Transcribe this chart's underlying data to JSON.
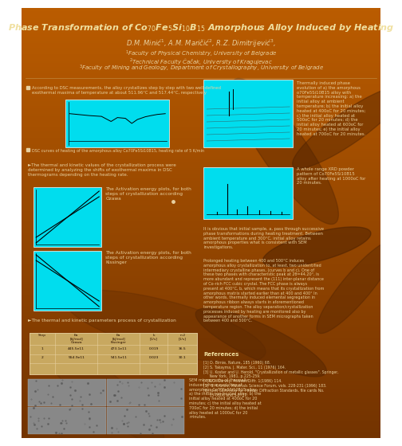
{
  "title": "Phase Transformation of Co$_{70}$Fe$_5$Si$_{10}$B$_{15}$ Amorphous Alloy Induced by Heating",
  "authors": "D.M. Minić$^1$, A.M. Maričić$^2$, R.Z. Dimitrijević$^3$,",
  "affil1": "$^1$Faculty of Physical Chemistry, University of Belgrade",
  "affil2": "$^2$Technical Faculty Čačak, University of Kragujevac",
  "affil3": "$^3$Faculty of Mining and Geology, Department of Crystallography, University of Belgrade",
  "bullet1_text": "According to DSC measurements, the alloy crystallizes step by step with two well-defined\nexothermal maxima of temperature at about 511.96°C and 517.44°C, respectively",
  "bullet2_text": "DSC curves of heating of the amorphous alloy Co70Fe5Si10B15, heating rate of 5 K/min",
  "kinetic_text": "►The thermal and kinetic values of the crystallization process were\ndetermined by analyzing the shifts of exothermal maxima in DSC\nthermograms depending on the heating rate.",
  "ozawa_text": "The Activation energy plots, for both\nsteps of crystallization according\nOzawa",
  "kissinger_text": "The Activation energy plots, for both\nsteps of crystallization according\nKissinger",
  "table_header_text": "►The thermal and kinetic parameters process of crystallization",
  "table_col1": "Step",
  "table_col2": "Ea\n[kJ/mol]\nOzawa",
  "table_col3": "Ea\n[kJ/mol]\nKissinger",
  "table_col4": "k\n[1/s]",
  "table_col5": "n-2\n[1/s]",
  "sem_text": "SEM micrographs of thermally\ninduced phase evolution of\namorphous Co70Fe5Si10B15 alloy:\na) the initial non-heated alloy; b) the\ninitial alloy heated at 400oC for 20\nminutes; c) the initial alloy heated at\n700oC for 20 minutes; d) the initial\nalloy heated at 1000oC for 20\nminutes.",
  "right_text1": "Thermally induced phase\nevolution of a) the amorphous\no70Fe5Si10B15 alloy with\ntemperature increasing: a) the\ninitial alloy at ambient\ntemperature; b) the initial alloy\nheated at 400oC for 20 minutes;\nc) the initial alloy heated at\n500oC for 20 minutes; d) the\ninitial alloy heated at 600oC for\n20 minutes; e) the initial alloy\nheated at 700oC for 20 minutes.",
  "xrd_text": "A whole range XRD powder\npattern of Co70Fe5Si10B15\nalloy after heating at 1000oC for\n20 minutes.",
  "obvious_text": "It is obvious that initial sample, a, pass through successive\nphase transformations during heating treatment. Between\nambient temperature and 300°C, initial alloy retains\namorphous properties what is consistent with SEM\ninvestigations.",
  "prolonged_text": "Prolonged heating between 400 and 500°C induces\namorphous alloy crystallization to, at least, two unidentified\nintermediary crystalline phases, (curves b and c). One of\nthese two phases with characteristic peak at 2θ=44.20°, is\nmore abundant and represent the (111) inter-planar distance\nof Co-rich FCC cubic crystal. The FCC phase is always\npresent at 400°C, b, which means that its crystallization from\namorphous matrix started earlier than at 400 and 400° In\nother words, thermally induced elemental segregation in\namorphous ribbon always starts in aforementioned\ntemperature region. The alloy separation/crystallization\nprocesses induced by heating are monitored also by\nappearance of another forms in SEM micrographs taken\nbetween 400 and 500°C.",
  "refs_title": "References",
  "refs": "[1] D. Birnie, Nature, 185 (1960) 68.\n[2] S. Takayma, J. Mater. Sci., 11 (1976) 164.\n[3] U. Koster and U. Herold. \"Crystallization of metallic glasses\". Springer,\n     New York, 1981, p.225-259.\n[4]R.G. Garvey, Powder Diffr. 1(1986) 114.\n[5]  S. Krunov, Materials Science Forum, vols. 228-231 (1996) 183.\n[6] Joint Committe for Powder Diffraction Standards, file cards No.\n     15-0806 and 5-0727.",
  "row1": [
    "1",
    "445.5e11",
    "473.1e11",
    "0.019",
    "36.5"
  ],
  "row2": [
    "2",
    "554.9e11",
    "541.5e11",
    "0.023",
    "30.1"
  ]
}
